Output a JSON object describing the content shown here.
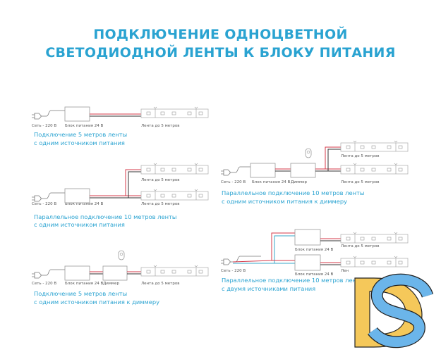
{
  "title": {
    "line1": "ПОДКЛЮЧЕНИЕ ОДНОЦВЕТНОЙ",
    "line2": "СВЕТОДИОДНОЙ ЛЕНТЫ К БЛОКУ ПИТАНИЯ"
  },
  "colors": {
    "accent": "#2aa3d1",
    "wire_positive": "#d63a4a",
    "wire_negative": "#333333",
    "wire_neutral_blue": "#3aa7c9",
    "logo_d": "#f5c85a",
    "logo_s": "#6bb5ea"
  },
  "diagrams": [
    {
      "mains": "Сеть - 220 В",
      "psu": "Блок питания 24 В",
      "strip": "Лента до 5 метров",
      "caption1": "Подключение 5 метров ленты",
      "caption2": "с одним источником питания"
    },
    {
      "mains": "Сеть - 220 В",
      "psu": "Блок питания 24 В",
      "strip_top": "Лента до 5 метров",
      "strip_bottom": "Лента до 5 метров",
      "caption1": "Параллельное подключение 10 метров ленты",
      "caption2": "с одним источником питания"
    },
    {
      "mains": "Сеть - 220 В",
      "psu": "Блок питания 24 В",
      "dimmer": "Диммер",
      "strip": "Лента до 5 метров",
      "caption1": "Подключение 5 метров ленты",
      "caption2": "с одним источником питания к диммеру"
    },
    {
      "mains": "Сеть - 220 В",
      "psu": "Блок питания 24 В",
      "dimmer": "Диммер",
      "strip_top": "Лента до 5 метров",
      "strip_bottom": "Лента до 5 метров",
      "caption1": "Параллельное подключение 10 метров ленты",
      "caption2": "с одним источником питания к диммеру"
    },
    {
      "mains": "Сеть - 220 В",
      "psu_top": "Блок питания 24 В",
      "psu_bottom": "Блок питания 24 В",
      "strip_top": "Лента до 5 метров",
      "strip_bottom": "Лен",
      "caption1": "Параллельное подключение 10 метров лен",
      "caption2": "с двумя источниками питания"
    }
  ],
  "logo": {
    "text": "DS"
  }
}
